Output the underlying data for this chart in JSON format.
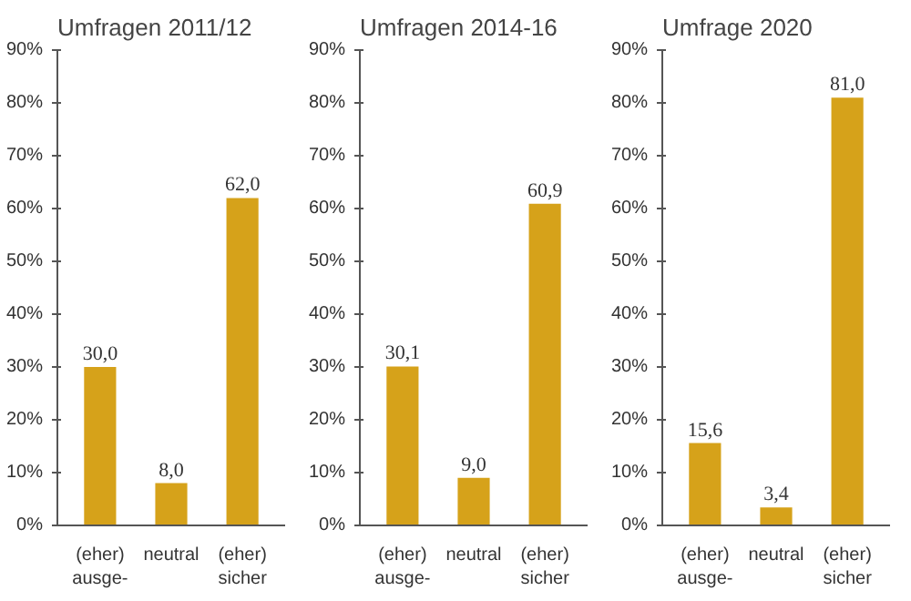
{
  "chart_data": [
    {
      "type": "bar",
      "title": "Umfragen 2011/12",
      "categories": [
        "(eher)\nausge-",
        "neutral",
        "(eher)\nsicher"
      ],
      "values": [
        30.0,
        8.0,
        62.0
      ],
      "value_labels": [
        "30,0",
        "8,0",
        "62,0"
      ],
      "color": "#d6a21a",
      "ylim": [
        0,
        90
      ],
      "yticks": [
        {
          "value": 0,
          "label": "0%"
        },
        {
          "value": 10,
          "label": "10%"
        },
        {
          "value": 20,
          "label": "20%"
        },
        {
          "value": 30,
          "label": "30%"
        },
        {
          "value": 40,
          "label": "40%"
        },
        {
          "value": 50,
          "label": "50%"
        },
        {
          "value": 60,
          "label": "60%"
        },
        {
          "value": 70,
          "label": "70%"
        },
        {
          "value": 80,
          "label": "80%"
        },
        {
          "value": 90,
          "label": "90%"
        }
      ]
    },
    {
      "type": "bar",
      "title": "Umfragen 2014-16",
      "categories": [
        "(eher)\nausge-",
        "neutral",
        "(eher)\nsicher"
      ],
      "values": [
        30.1,
        9.0,
        60.9
      ],
      "value_labels": [
        "30,1",
        "9,0",
        "60,9"
      ],
      "color": "#d6a21a",
      "ylim": [
        0,
        90
      ],
      "yticks": [
        {
          "value": 0,
          "label": "0%"
        },
        {
          "value": 10,
          "label": "10%"
        },
        {
          "value": 20,
          "label": "20%"
        },
        {
          "value": 30,
          "label": "30%"
        },
        {
          "value": 40,
          "label": "40%"
        },
        {
          "value": 50,
          "label": "50%"
        },
        {
          "value": 60,
          "label": "60%"
        },
        {
          "value": 70,
          "label": "70%"
        },
        {
          "value": 80,
          "label": "80%"
        },
        {
          "value": 90,
          "label": "90%"
        }
      ]
    },
    {
      "type": "bar",
      "title": "Umfrage 2020",
      "categories": [
        "(eher)\nausge-",
        "neutral",
        "(eher)\nsicher"
      ],
      "values": [
        15.6,
        3.4,
        81.0
      ],
      "value_labels": [
        "15,6",
        "3,4",
        "81,0"
      ],
      "color": "#d6a21a",
      "ylim": [
        0,
        90
      ],
      "yticks": [
        {
          "value": 0,
          "label": "0%"
        },
        {
          "value": 10,
          "label": "10%"
        },
        {
          "value": 20,
          "label": "20%"
        },
        {
          "value": 30,
          "label": "30%"
        },
        {
          "value": 40,
          "label": "40%"
        },
        {
          "value": 50,
          "label": "50%"
        },
        {
          "value": 60,
          "label": "60%"
        },
        {
          "value": 70,
          "label": "70%"
        },
        {
          "value": 80,
          "label": "80%"
        },
        {
          "value": 90,
          "label": "90%"
        }
      ]
    }
  ]
}
